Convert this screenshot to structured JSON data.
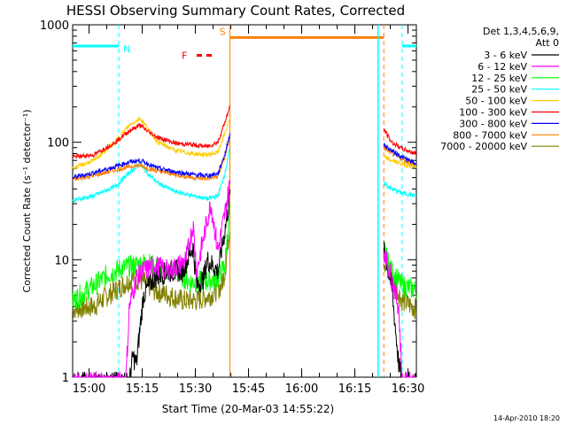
{
  "chart_data": {
    "type": "line",
    "title": "HESSI Observing Summary Count Rates, Corrected",
    "xlabel": "Start Time (20-Mar-03 14:55:22)",
    "ylabel": "Corrected Count Rate (s⁻¹ detector⁻¹)",
    "footer": "14-Apr-2010 18:20",
    "y_scale": "log",
    "ylim": [
      1,
      1000
    ],
    "y_ticks": [
      {
        "value": 1,
        "label": "1"
      },
      {
        "value": 10,
        "label": "10"
      },
      {
        "value": 100,
        "label": "100"
      },
      {
        "value": 1000,
        "label": "1000"
      }
    ],
    "xlim_minutes": [
      0,
      97
    ],
    "x_ticks": [
      {
        "t": 4.63,
        "label": "15:00"
      },
      {
        "t": 19.63,
        "label": "15:15"
      },
      {
        "t": 34.63,
        "label": "15:30"
      },
      {
        "t": 49.63,
        "label": "15:45"
      },
      {
        "t": 64.63,
        "label": "16:00"
      },
      {
        "t": 79.63,
        "label": "16:15"
      },
      {
        "t": 94.63,
        "label": "16:30"
      }
    ],
    "legend": {
      "header": [
        "Det 1,3,4,5,6,9,",
        "Att 0"
      ],
      "position": "right"
    },
    "gaps_minutes": [
      [
        44.4,
        87.8
      ]
    ],
    "series": [
      {
        "name": "3 - 6 keV",
        "color": "#000000",
        "points": [
          [
            0,
            0.9
          ],
          [
            16,
            0.9
          ],
          [
            17,
            1.5
          ],
          [
            18,
            1.3
          ],
          [
            19,
            2.6
          ],
          [
            20,
            5
          ],
          [
            23,
            7
          ],
          [
            27,
            8
          ],
          [
            31,
            8
          ],
          [
            34,
            13
          ],
          [
            35,
            6
          ],
          [
            37,
            7
          ],
          [
            38,
            10
          ],
          [
            41,
            8
          ],
          [
            43,
            18
          ],
          [
            44.4,
            35
          ],
          [
            87.8,
            12
          ],
          [
            90,
            6
          ],
          [
            92,
            1.3
          ],
          [
            93,
            0.9
          ],
          [
            97,
            0.9
          ]
        ]
      },
      {
        "name": "6 - 12 keV",
        "color": "#ff00ff",
        "points": [
          [
            0,
            0.9
          ],
          [
            15,
            0.9
          ],
          [
            16,
            4
          ],
          [
            18,
            7
          ],
          [
            20,
            8
          ],
          [
            23,
            9
          ],
          [
            27,
            8
          ],
          [
            30,
            9
          ],
          [
            32,
            10
          ],
          [
            34,
            20
          ],
          [
            35,
            8
          ],
          [
            38,
            22
          ],
          [
            39,
            30
          ],
          [
            41,
            12
          ],
          [
            43,
            25
          ],
          [
            44.4,
            45
          ],
          [
            87.8,
            12
          ],
          [
            90,
            7
          ],
          [
            92,
            4
          ],
          [
            93,
            0.9
          ],
          [
            97,
            0.9
          ]
        ]
      },
      {
        "name": "12 - 25 keV",
        "color": "#00ff00",
        "points": [
          [
            0,
            4.5
          ],
          [
            6,
            6
          ],
          [
            10,
            7.5
          ],
          [
            14,
            8.5
          ],
          [
            18,
            9
          ],
          [
            21,
            9.5
          ],
          [
            25,
            8
          ],
          [
            29,
            8
          ],
          [
            33,
            6.5
          ],
          [
            37,
            6.5
          ],
          [
            41,
            7
          ],
          [
            43,
            9
          ],
          [
            44.4,
            30
          ],
          [
            87.8,
            12
          ],
          [
            90,
            8
          ],
          [
            93,
            6
          ],
          [
            97,
            5.5
          ]
        ]
      },
      {
        "name": "25 - 50 keV",
        "color": "#00ffff",
        "points": [
          [
            0,
            32
          ],
          [
            6,
            35
          ],
          [
            12,
            42
          ],
          [
            16,
            55
          ],
          [
            19,
            65
          ],
          [
            21,
            55
          ],
          [
            24,
            45
          ],
          [
            29,
            38
          ],
          [
            34,
            35
          ],
          [
            38,
            33
          ],
          [
            41,
            35
          ],
          [
            43,
            55
          ],
          [
            44.4,
            90
          ],
          [
            87.8,
            45
          ],
          [
            90,
            40
          ],
          [
            93,
            37
          ],
          [
            97,
            35
          ]
        ]
      },
      {
        "name": "50 - 100 keV",
        "color": "#ffcc00",
        "points": [
          [
            0,
            60
          ],
          [
            6,
            70
          ],
          [
            12,
            100
          ],
          [
            16,
            140
          ],
          [
            19,
            160
          ],
          [
            21,
            135
          ],
          [
            24,
            100
          ],
          [
            29,
            85
          ],
          [
            34,
            80
          ],
          [
            38,
            78
          ],
          [
            41,
            82
          ],
          [
            43,
            120
          ],
          [
            44.4,
            160
          ],
          [
            87.8,
            75
          ],
          [
            90,
            70
          ],
          [
            93,
            65
          ],
          [
            97,
            62
          ]
        ]
      },
      {
        "name": "100 - 300 keV",
        "color": "#ff0000",
        "points": [
          [
            0,
            75
          ],
          [
            6,
            78
          ],
          [
            12,
            100
          ],
          [
            16,
            125
          ],
          [
            19,
            140
          ],
          [
            21,
            125
          ],
          [
            24,
            110
          ],
          [
            29,
            98
          ],
          [
            34,
            95
          ],
          [
            38,
            92
          ],
          [
            41,
            100
          ],
          [
            43,
            150
          ],
          [
            44.4,
            200
          ],
          [
            87.8,
            130
          ],
          [
            90,
            100
          ],
          [
            93,
            88
          ],
          [
            97,
            80
          ]
        ]
      },
      {
        "name": "300 - 800 keV",
        "color": "#0000ff",
        "points": [
          [
            0,
            50
          ],
          [
            6,
            55
          ],
          [
            12,
            62
          ],
          [
            16,
            68
          ],
          [
            19,
            70
          ],
          [
            21,
            66
          ],
          [
            24,
            60
          ],
          [
            29,
            56
          ],
          [
            34,
            53
          ],
          [
            38,
            52
          ],
          [
            41,
            54
          ],
          [
            43,
            80
          ],
          [
            44.4,
            120
          ],
          [
            87.8,
            95
          ],
          [
            90,
            85
          ],
          [
            93,
            75
          ],
          [
            97,
            65
          ]
        ]
      },
      {
        "name": "800 - 7000 keV",
        "color": "#ff8000",
        "points": [
          [
            0,
            48
          ],
          [
            6,
            52
          ],
          [
            12,
            58
          ],
          [
            16,
            62
          ],
          [
            19,
            64
          ],
          [
            21,
            60
          ],
          [
            24,
            57
          ],
          [
            29,
            53
          ],
          [
            34,
            50
          ],
          [
            38,
            49
          ],
          [
            41,
            51
          ],
          [
            43,
            75
          ],
          [
            44.4,
            110
          ],
          [
            87.8,
            90
          ],
          [
            90,
            80
          ],
          [
            93,
            72
          ],
          [
            97,
            62
          ]
        ]
      },
      {
        "name": "7000 - 20000 keV",
        "color": "#808000",
        "points": [
          [
            0,
            3.8
          ],
          [
            6,
            4
          ],
          [
            10,
            5
          ],
          [
            14,
            6
          ],
          [
            17,
            7
          ],
          [
            20,
            6.5
          ],
          [
            23,
            5.5
          ],
          [
            27,
            5
          ],
          [
            31,
            4.5
          ],
          [
            35,
            4.5
          ],
          [
            39,
            5
          ],
          [
            42,
            6
          ],
          [
            43,
            8
          ],
          [
            44.4,
            20
          ],
          [
            87.8,
            10
          ],
          [
            90,
            7
          ],
          [
            93,
            4.5
          ],
          [
            97,
            3.8
          ]
        ]
      }
    ],
    "annotations": [
      {
        "label": "N",
        "color": "#00ffff",
        "bars": [
          [
            0,
            13
          ],
          [
            93,
            97
          ]
        ],
        "bar_level": 660,
        "markers": [
          13,
          93
        ],
        "marker_style": "dashed"
      },
      {
        "label": "S",
        "color": "#ff8000",
        "bars": [
          [
            44.4,
            87.8
          ]
        ],
        "bar_level": 780,
        "markers": [
          44.4,
          87.8
        ],
        "marker_style": "solid-dashed"
      },
      {
        "label": "F",
        "color": "#ff0000",
        "bars": [
          [
            35,
            39.5
          ]
        ],
        "bar_level": 550,
        "markers": [],
        "marker_style": "dashed"
      }
    ],
    "extra_markers": [
      {
        "t": 86.2,
        "color": "#00ffff",
        "style": "solid"
      }
    ]
  }
}
